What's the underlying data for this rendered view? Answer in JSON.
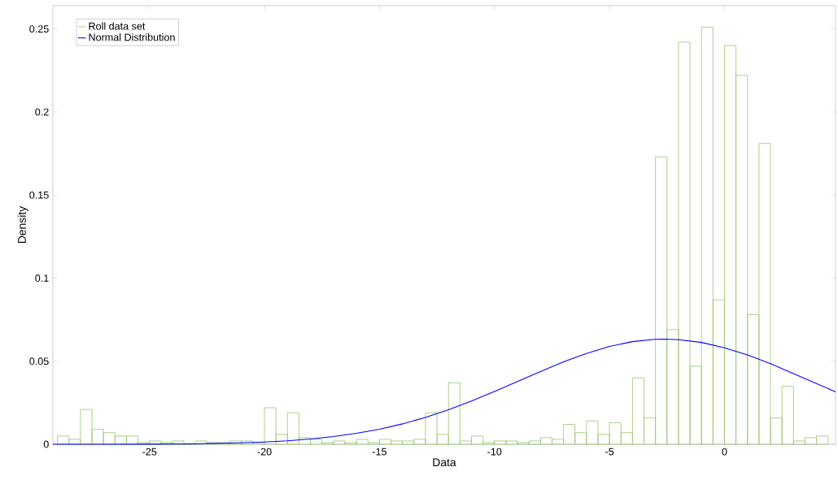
{
  "chart_data": {
    "type": "histogram",
    "xlabel": "Data",
    "ylabel": "Density",
    "bins": [
      -29,
      -28.5,
      -28,
      -27.5,
      -27,
      -26.5,
      -26,
      -25.5,
      -25,
      -24.5,
      -24,
      -23.5,
      -23,
      -22.5,
      -22,
      -21.5,
      -21,
      -20.5,
      -20,
      -19.5,
      -19,
      -18.5,
      -18,
      -17.5,
      -17,
      -16.5,
      -16,
      -15.5,
      -15,
      -14.5,
      -14,
      -13.5,
      -13,
      -12.5,
      -12,
      -11.5,
      -11,
      -10.5,
      -10,
      -9.5,
      -9,
      -8.5,
      -8,
      -7.5,
      -7,
      -6.5,
      -6,
      -5.5,
      -5,
      -4.5,
      -4,
      -3.5,
      -3,
      -2.5,
      -2,
      -1.5,
      -1,
      -0.5,
      0,
      0.5,
      1,
      1.5,
      2,
      2.5,
      3,
      3.5,
      4,
      4.5
    ],
    "series": [
      {
        "name": "Roll data set",
        "type": "histogram",
        "color": "#92c66a",
        "values": [
          0.005,
          0.003,
          0.021,
          0.009,
          0.007,
          0.005,
          0.005,
          0.001,
          0.002,
          0.001,
          0.002,
          0,
          0.002,
          0.001,
          0.001,
          0.002,
          0.002,
          0.001,
          0.022,
          0.006,
          0.019,
          0.004,
          0.003,
          0.001,
          0.002,
          0.001,
          0.003,
          0.001,
          0.003,
          0.002,
          0.002,
          0.003,
          0.019,
          0.006,
          0.037,
          0.002,
          0.005,
          0.001,
          0.002,
          0.002,
          0.001,
          0.002,
          0.004,
          0.003,
          0.012,
          0.007,
          0.014,
          0.006,
          0.013,
          0.007,
          0.04,
          0.016,
          0.173,
          0.069,
          0.242,
          0.047,
          0.251,
          0.087,
          0.24,
          0.222,
          0.078,
          0.181,
          0.016,
          0.035,
          0.002,
          0.004,
          0.005
        ]
      },
      {
        "name": "Normal Distribution",
        "type": "line",
        "color": "#0000ff",
        "x": [
          -29.2,
          -27,
          -25,
          -23,
          -21,
          -20,
          -19,
          -18,
          -17,
          -16,
          -15,
          -14,
          -13,
          -12,
          -11,
          -10,
          -9,
          -8,
          -7,
          -6,
          -5,
          -4,
          -3,
          -2.6,
          -2,
          -1,
          0,
          1,
          2,
          3,
          4,
          4.83
        ],
        "values": [
          0,
          0,
          0.0001,
          0.0003,
          0.0009,
          0.0014,
          0.0021,
          0.0032,
          0.0047,
          0.0066,
          0.0091,
          0.0123,
          0.0162,
          0.0208,
          0.026,
          0.0318,
          0.0378,
          0.0438,
          0.0496,
          0.0547,
          0.0589,
          0.0618,
          0.0632,
          0.0633,
          0.063,
          0.0613,
          0.0581,
          0.0538,
          0.0485,
          0.0426,
          0.0366,
          0.0316
        ]
      }
    ],
    "xlim": [
      -29.2,
      4.83
    ],
    "ylim": [
      0,
      0.264
    ],
    "xticks": [
      -25,
      -20,
      -15,
      -10,
      -5,
      0
    ],
    "yticks": [
      0,
      0.05,
      0.1,
      0.15,
      0.2,
      0.25
    ],
    "legend": "top left"
  }
}
